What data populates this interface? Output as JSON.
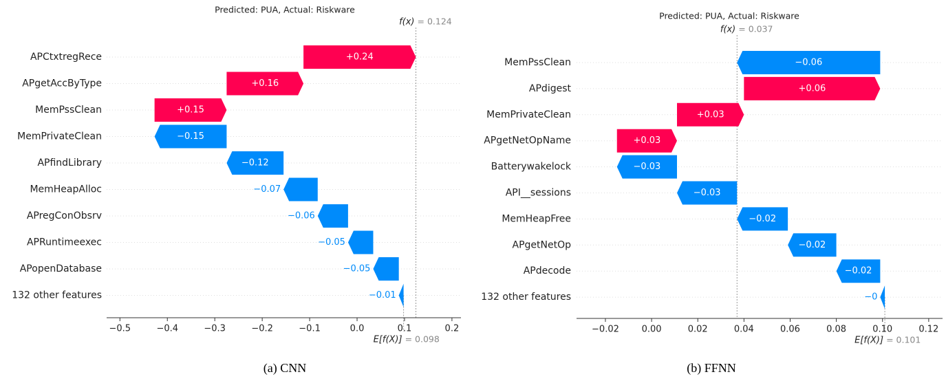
{
  "chart_data": [
    {
      "type": "waterfall",
      "title": "Predicted: PUA, Actual: Riskware",
      "caption": "(a) CNN",
      "categories": [
        "APCtxtregRece",
        "APgetAccByType",
        "MemPssClean",
        "MemPrivateClean",
        "APfindLibrary",
        "MemHeapAlloc",
        "APregConObsrv",
        "APRuntimeexec",
        "APopenDatabase",
        "132 other features"
      ],
      "values": [
        0.237,
        0.162,
        0.152,
        -0.152,
        -0.12,
        -0.072,
        -0.064,
        -0.053,
        -0.054,
        -0.01
      ],
      "value_labels": [
        "+0.24",
        "+0.16",
        "+0.15",
        "−0.15",
        "−0.12",
        "−0.07",
        "−0.06",
        "−0.05",
        "−0.05",
        "−0.01"
      ],
      "positive_color": "#ff0051",
      "negative_color": "#008bfb",
      "fx_label": "f(x)",
      "fx_value": 0.124,
      "fx_value_label": "= 0.124",
      "base_label": "E[f(X)]",
      "base_value": 0.098,
      "base_value_label": "= 0.098",
      "xlim": [
        -0.528,
        0.219
      ],
      "xticks": [
        {
          "value": -0.5,
          "label": "−0.5"
        },
        {
          "value": -0.4,
          "label": "−0.4"
        },
        {
          "value": -0.3,
          "label": "−0.3"
        },
        {
          "value": -0.2,
          "label": "−0.2"
        },
        {
          "value": -0.1,
          "label": "−0.1"
        },
        {
          "value": 0,
          "label": "0.0"
        },
        0.1,
        0.2
      ]
    },
    {
      "type": "waterfall",
      "title": "Predicted: PUA, Actual: Riskware",
      "caption": "(b) FFNN",
      "categories": [
        "MemPssClean",
        "APdigest",
        "MemPrivateClean",
        "APgetNetOpName",
        "Batterywakelock",
        "API__sessions",
        "MemHeapFree",
        "APgetNetOp",
        "APdecode",
        "132 other features"
      ],
      "values": [
        -0.062,
        0.059,
        0.029,
        0.026,
        -0.026,
        -0.026,
        -0.022,
        -0.021,
        -0.019,
        -0.002
      ],
      "value_labels": [
        "−0.06",
        "+0.06",
        "+0.03",
        "+0.03",
        "−0.03",
        "−0.03",
        "−0.02",
        "−0.02",
        "−0.02",
        "−0"
      ],
      "positive_color": "#ff0051",
      "negative_color": "#008bfb",
      "fx_label": "f(x)",
      "fx_value": 0.037,
      "fx_value_label": "= 0.037",
      "base_label": "E[f(X)]",
      "base_value": 0.101,
      "base_value_label": "= 0.101",
      "xlim": [
        -0.0325,
        0.126
      ],
      "xticks": [
        {
          "value": -0.02,
          "label": "−0.02"
        },
        {
          "value": 0,
          "label": "0.00"
        },
        0.02,
        0.04,
        0.06,
        0.08,
        {
          "value": 0.1,
          "label": "0.10"
        },
        0.12
      ]
    }
  ]
}
